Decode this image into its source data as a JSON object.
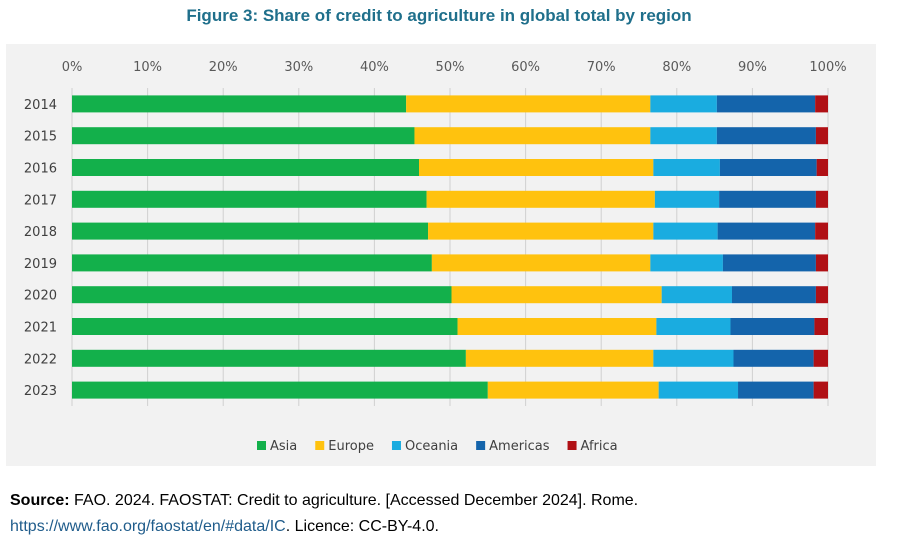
{
  "title": "Figure 3: Share of credit to agriculture in global total by region",
  "source": {
    "label": "Source:",
    "text": " FAO. 2024. FAOSTAT: Credit to agriculture. [Accessed December 2024]. Rome.",
    "link": "https://www.fao.org/faostat/en/#data/IC",
    "after_link": ". Licence: CC-BY-4.0."
  },
  "chart_data": {
    "type": "bar",
    "orientation": "horizontal",
    "stacked": true,
    "categories": [
      "2014",
      "2015",
      "2016",
      "2017",
      "2018",
      "2019",
      "2020",
      "2021",
      "2022",
      "2023"
    ],
    "xlim": [
      0,
      100
    ],
    "xticks": [
      "0%",
      "10%",
      "20%",
      "30%",
      "40%",
      "50%",
      "60%",
      "70%",
      "80%",
      "90%",
      "100%"
    ],
    "xaxis_position": "top",
    "grid": true,
    "legend_position": "bottom",
    "series": [
      {
        "name": "Asia",
        "color": "#13b04b",
        "values": [
          44.2,
          45.3,
          45.9,
          46.9,
          47.1,
          47.6,
          50.2,
          51.0,
          52.1,
          55.0
        ]
      },
      {
        "name": "Europe",
        "color": "#ffc20e",
        "values": [
          32.3,
          31.2,
          31.0,
          30.2,
          29.8,
          28.9,
          27.8,
          26.3,
          24.8,
          22.6
        ]
      },
      {
        "name": "Oceania",
        "color": "#1aace0",
        "values": [
          8.8,
          8.8,
          8.8,
          8.5,
          8.5,
          9.6,
          9.3,
          9.8,
          10.6,
          10.5
        ]
      },
      {
        "name": "Americas",
        "color": "#1464ab",
        "values": [
          13.0,
          13.1,
          12.8,
          12.8,
          12.9,
          12.3,
          11.1,
          11.1,
          10.6,
          10.0
        ]
      },
      {
        "name": "Africa",
        "color": "#b01015",
        "values": [
          1.7,
          1.6,
          1.5,
          1.6,
          1.7,
          1.6,
          1.6,
          1.8,
          1.9,
          1.9
        ]
      }
    ]
  }
}
